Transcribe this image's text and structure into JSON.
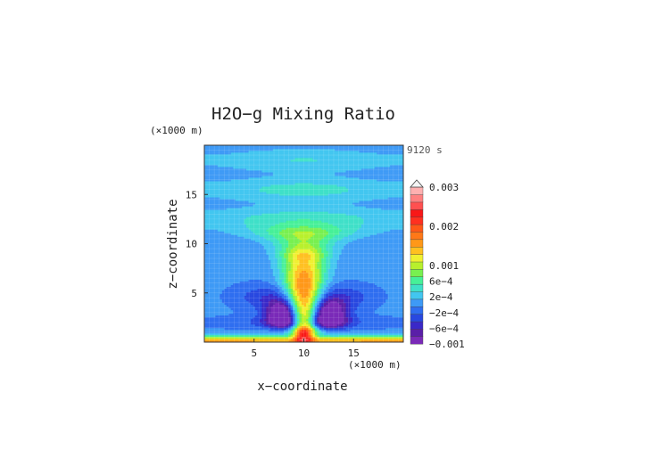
{
  "chart_data": {
    "type": "heatmap",
    "title": "H2O−g Mixing Ratio",
    "time_label": "9120 s",
    "xlabel": "x−coordinate",
    "ylabel": "z−coordinate",
    "x_unit": "(×1000 m)",
    "y_unit": "(×1000 m)",
    "xlim": [
      0,
      20
    ],
    "ylim": [
      0,
      20
    ],
    "xticks": [
      5,
      10,
      15
    ],
    "yticks": [
      5,
      10,
      15
    ],
    "grid": true,
    "colorbar": {
      "labels": [
        "0.003",
        "0.002",
        "0.001",
        "6e−4",
        "2e−4",
        "−2e−4",
        "−6e−4",
        "−0.001"
      ],
      "colors": [
        "#7a2ab8",
        "#5a1fa8",
        "#3a28c8",
        "#2848e0",
        "#2f6ef0",
        "#3e9af6",
        "#42c6f0",
        "#3fe0c8",
        "#46f098",
        "#78f050",
        "#b8f02c",
        "#f0f030",
        "#ffc020",
        "#ff9818",
        "#ff7818",
        "#ff5818",
        "#ff3020",
        "#f81818",
        "#ff5050",
        "#ff8080",
        "#ffb0b0"
      ]
    },
    "field": {
      "background_value": 0.0,
      "features": [
        {
          "kind": "plume_core",
          "x": 10.0,
          "z_range": [
            1,
            8.5
          ],
          "value": 0.0018
        },
        {
          "kind": "plume_cap",
          "x": 10.0,
          "z": 10.4,
          "value": 0.0004
        },
        {
          "kind": "upper_bands",
          "z": [
            12.5,
            15.5,
            18.5
          ],
          "value": -0.0002
        },
        {
          "kind": "low_level_minima",
          "x": [
            8.0,
            12.5
          ],
          "z": 2.8,
          "value": -0.001
        },
        {
          "kind": "surface_layer",
          "z_range": [
            0,
            0.6
          ],
          "value": 0.0015
        }
      ]
    }
  }
}
